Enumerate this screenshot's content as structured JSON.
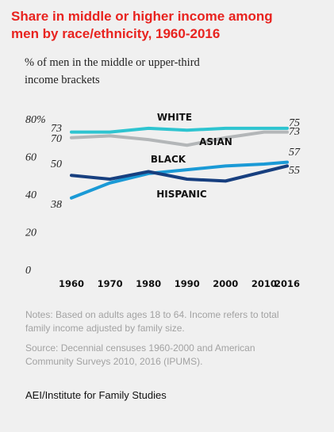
{
  "header": {
    "title_line1": "Share in middle or higher income among",
    "title_line2": "men by race/ethnicity, 1960-2016",
    "subtitle_line1": "% of men in the middle or upper-third",
    "subtitle_line2": "income brackets"
  },
  "footer": {
    "notes_line1": "Notes: Based on adults ages 18 to 64. Income refers to total",
    "notes_line2": "family income adjusted by family size.",
    "source_line1": "Source: Decennial censuses 1960-2000 and American",
    "source_line2": "Community Surveys 2010, 2016 (IPUMS).",
    "credit": "AEI/Institute for Family Studies"
  },
  "chart_data": {
    "type": "line",
    "x": [
      1960,
      1970,
      1980,
      1990,
      2000,
      2010,
      2016
    ],
    "xtick_labels": [
      "1960",
      "1970",
      "1980",
      "1990",
      "2000",
      "2010",
      "2016"
    ],
    "ylim": [
      0,
      80
    ],
    "yticks": [
      0,
      20,
      40,
      60,
      80
    ],
    "ytick_labels": [
      "0",
      "20",
      "40",
      "60",
      "80%"
    ],
    "grid": false,
    "series": [
      {
        "name": "WHITE",
        "color": "#2ec4d0",
        "values": [
          73,
          73,
          75,
          74,
          75,
          75,
          75
        ],
        "start_label": "73",
        "end_label": "75"
      },
      {
        "name": "ASIAN",
        "color": "#b3b6b8",
        "values": [
          70,
          71,
          69,
          66,
          70,
          73,
          73
        ],
        "start_label": "70",
        "end_label": "73"
      },
      {
        "name": "BLACK",
        "color": "#1a9ad6",
        "values": [
          38,
          46,
          51,
          53,
          55,
          56,
          57
        ],
        "start_label": "38",
        "end_label": "57"
      },
      {
        "name": "HISPANIC",
        "color": "#173f7f",
        "values": [
          50,
          48,
          52,
          48,
          47,
          52,
          55
        ],
        "start_label": "50",
        "end_label": "55"
      }
    ]
  }
}
